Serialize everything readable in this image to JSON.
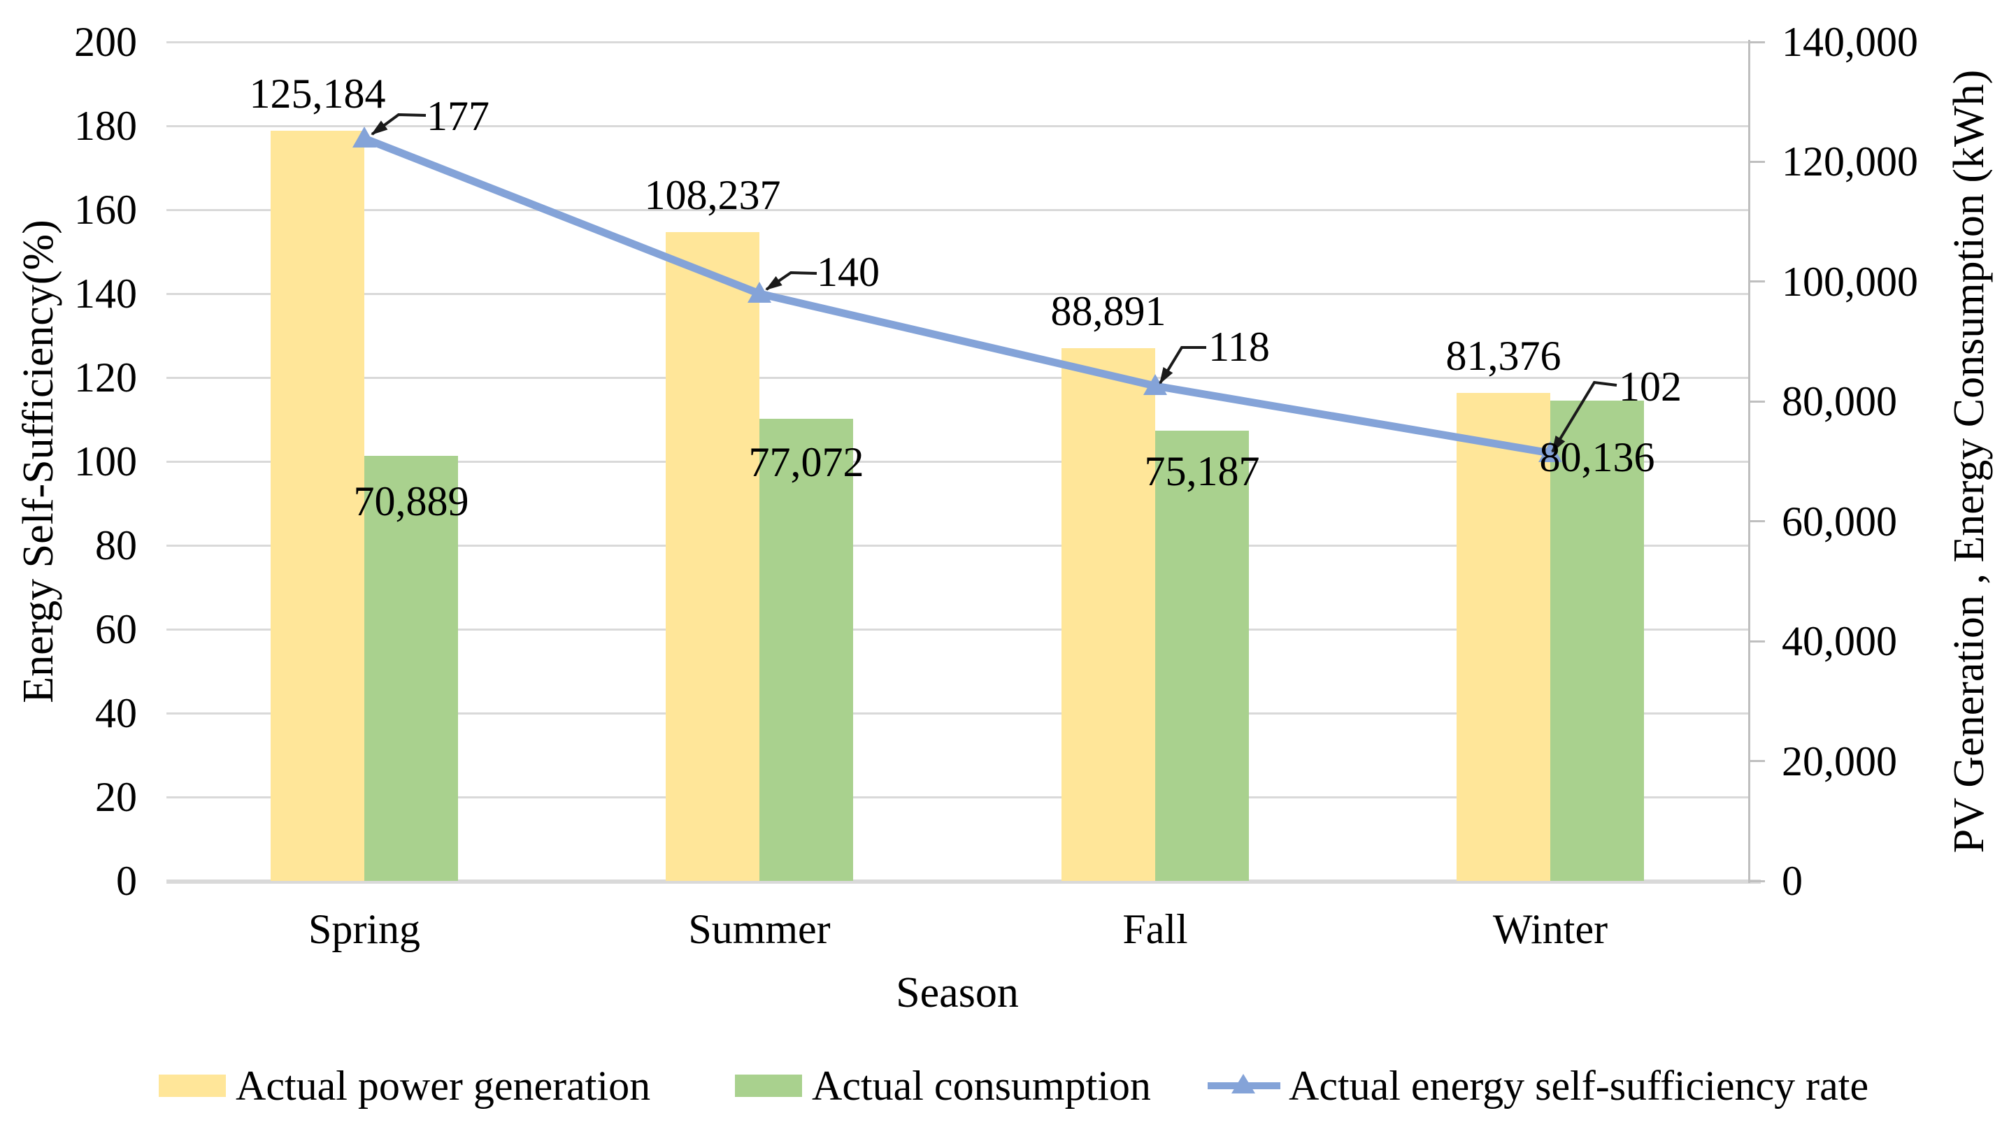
{
  "chart_data": {
    "type": "bar+line combo",
    "categories": [
      "Spring",
      "Summer",
      "Fall",
      "Winter"
    ],
    "series": [
      {
        "name": "Actual power generation",
        "type": "bar",
        "axis": "right",
        "color": "#FFE699",
        "values": [
          125184,
          108237,
          88891,
          81376
        ],
        "labels": [
          "125,184",
          "108,237",
          "88,891",
          "81,376"
        ]
      },
      {
        "name": "Actual consumption",
        "type": "bar",
        "axis": "right",
        "color": "#A9D18E",
        "values": [
          70889,
          77072,
          75187,
          80136
        ],
        "labels": [
          "70,889",
          "77,072",
          "75,187",
          "80,136"
        ]
      },
      {
        "name": "Actual energy self-sufficiency rate",
        "type": "line",
        "axis": "left",
        "color": "#84A3D8",
        "marker": "triangle-icon",
        "values": [
          177,
          140,
          118,
          102
        ],
        "labels": [
          "177",
          "140",
          "118",
          "102"
        ]
      }
    ],
    "left_axis": {
      "title": "Energy Self-Sufficiency(%)",
      "min": 0,
      "max": 200,
      "step": 20,
      "ticks": [
        "0",
        "20",
        "40",
        "60",
        "80",
        "100",
        "120",
        "140",
        "160",
        "180",
        "200"
      ]
    },
    "right_axis": {
      "title": "PV Generation , Energy Consumption (kWh)",
      "min": 0,
      "max": 140000,
      "step": 20000,
      "ticks": [
        "0",
        "20,000",
        "40,000",
        "60,000",
        "80,000",
        "100,000",
        "120,000",
        "140,000"
      ]
    },
    "x_axis": {
      "title": "Season"
    },
    "legend": [
      "Actual power generation",
      "Actual consumption",
      "Actual energy self-sufficiency rate"
    ],
    "legend_position": "bottom",
    "grid": true
  },
  "colors": {
    "bar_generation": "#FFE699",
    "bar_consumption": "#A9D18E",
    "line_self_sufficiency": "#84A3D8",
    "gridline": "#D9D9D9",
    "axis_line": "#BFBFBF",
    "leader_line": "#1A1A1A",
    "text": "#000000",
    "background": "#FFFFFF"
  }
}
